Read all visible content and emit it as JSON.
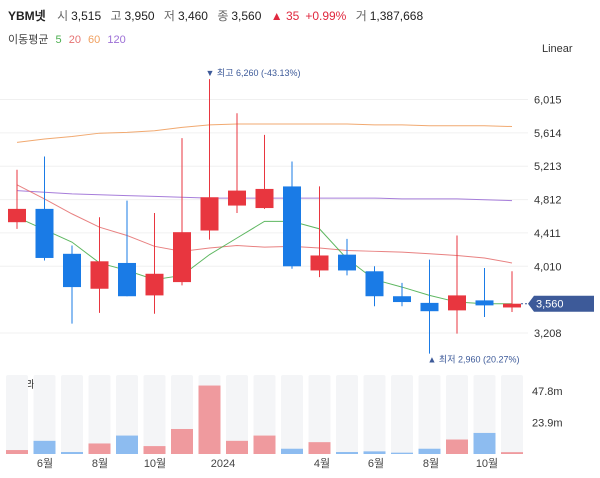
{
  "header": {
    "name": "YBM넷",
    "open_label": "시",
    "open": "3,515",
    "high_label": "고",
    "high": "3,950",
    "low_label": "저",
    "low": "3,460",
    "close_label": "종",
    "close": "3,560",
    "change": "▲ 35",
    "change_pct": "+0.99%",
    "volume_label": "거",
    "volume": "1,387,668"
  },
  "moving_average": {
    "label": "이동평균",
    "periods": [
      {
        "value": "5",
        "color": "#4caf50"
      },
      {
        "value": "20",
        "color": "#e57373"
      },
      {
        "value": "60",
        "color": "#f0a060"
      },
      {
        "value": "120",
        "color": "#9c6fd6"
      }
    ]
  },
  "scale_label": "Linear",
  "volume_panel": {
    "label": "거래량"
  },
  "colors": {
    "up": "#e8363f",
    "down": "#1a7be6",
    "vol_up": "#ef9a9e",
    "vol_down": "#8dbcf0",
    "price_tag": "#3d5a99"
  },
  "chart_data": {
    "type": "candlestick",
    "price_axis": {
      "ticks": [
        6015,
        5614,
        5213,
        4812,
        4411,
        4010,
        3208
      ],
      "tick_labels": [
        "6,015",
        "5,614",
        "5,213",
        "4,812",
        "4,411",
        "4,010",
        "3,208"
      ],
      "range": [
        2930,
        6800
      ]
    },
    "volume_axis": {
      "tick_labels": [
        "47.8m",
        "23.9m"
      ],
      "ticks": [
        47.8,
        23.9
      ],
      "range": [
        0,
        60
      ]
    },
    "x_tick_labels": [
      "6월",
      "8월",
      "10월",
      "2024",
      "4월",
      "6월",
      "8월",
      "10월"
    ],
    "candles": [
      {
        "o": 4540,
        "h": 5170,
        "l": 4460,
        "c": 4700
      },
      {
        "o": 4700,
        "h": 5330,
        "l": 4080,
        "c": 4110
      },
      {
        "o": 4160,
        "h": 4260,
        "l": 3320,
        "c": 3760
      },
      {
        "o": 3740,
        "h": 4600,
        "l": 3450,
        "c": 4070
      },
      {
        "o": 4050,
        "h": 4800,
        "l": 3650,
        "c": 3650
      },
      {
        "o": 3660,
        "h": 4650,
        "l": 3440,
        "c": 3920
      },
      {
        "o": 3820,
        "h": 5550,
        "l": 3780,
        "c": 4420
      },
      {
        "o": 4440,
        "h": 6260,
        "l": 4330,
        "c": 4840
      },
      {
        "o": 4740,
        "h": 5850,
        "l": 4650,
        "c": 4920
      },
      {
        "o": 4710,
        "h": 5590,
        "l": 4700,
        "c": 4940
      },
      {
        "o": 4970,
        "h": 5270,
        "l": 3980,
        "c": 4010
      },
      {
        "o": 3960,
        "h": 4970,
        "l": 3880,
        "c": 4140
      },
      {
        "o": 4150,
        "h": 4340,
        "l": 3900,
        "c": 3960
      },
      {
        "o": 3950,
        "h": 4010,
        "l": 3530,
        "c": 3650
      },
      {
        "o": 3650,
        "h": 3810,
        "l": 3530,
        "c": 3580
      },
      {
        "o": 3570,
        "h": 4090,
        "l": 2960,
        "c": 3470
      },
      {
        "o": 3480,
        "h": 4380,
        "l": 3200,
        "c": 3660
      },
      {
        "o": 3600,
        "h": 3990,
        "l": 3400,
        "c": 3540
      },
      {
        "o": 3515,
        "h": 3950,
        "l": 3460,
        "c": 3560
      }
    ],
    "volume": [
      3,
      10,
      1.5,
      8,
      14,
      6,
      19,
      52,
      10,
      14,
      4,
      9,
      1.5,
      2,
      1,
      4,
      11,
      16,
      1.4
    ],
    "ma5": [
      4600,
      4450,
      4300,
      4050,
      3960,
      3850,
      3900,
      4150,
      4350,
      4550,
      4550,
      4460,
      4100,
      3850,
      3760,
      3660,
      3580,
      3560,
      3560
    ],
    "ma20": [
      4990,
      4820,
      4640,
      4480,
      4380,
      4250,
      4190,
      4230,
      4260,
      4240,
      4250,
      4230,
      4200,
      4190,
      4180,
      4160,
      4140,
      4110,
      4050
    ],
    "ma60": [
      5500,
      5540,
      5570,
      5610,
      5620,
      5640,
      5680,
      5710,
      5720,
      5720,
      5720,
      5720,
      5720,
      5710,
      5710,
      5700,
      5700,
      5700,
      5690
    ],
    "ma120": [
      4920,
      4900,
      4880,
      4870,
      4860,
      4850,
      4840,
      4830,
      4830,
      4830,
      4830,
      4830,
      4830,
      4830,
      4820,
      4820,
      4820,
      4810,
      4800
    ],
    "annotations": {
      "high": {
        "index": 7,
        "text": "▼ 최고 6,260 (-43.13%)"
      },
      "low": {
        "index": 15,
        "text": "▲ 최저 2,960 (20.27%)"
      },
      "current_price": "3,560"
    }
  }
}
